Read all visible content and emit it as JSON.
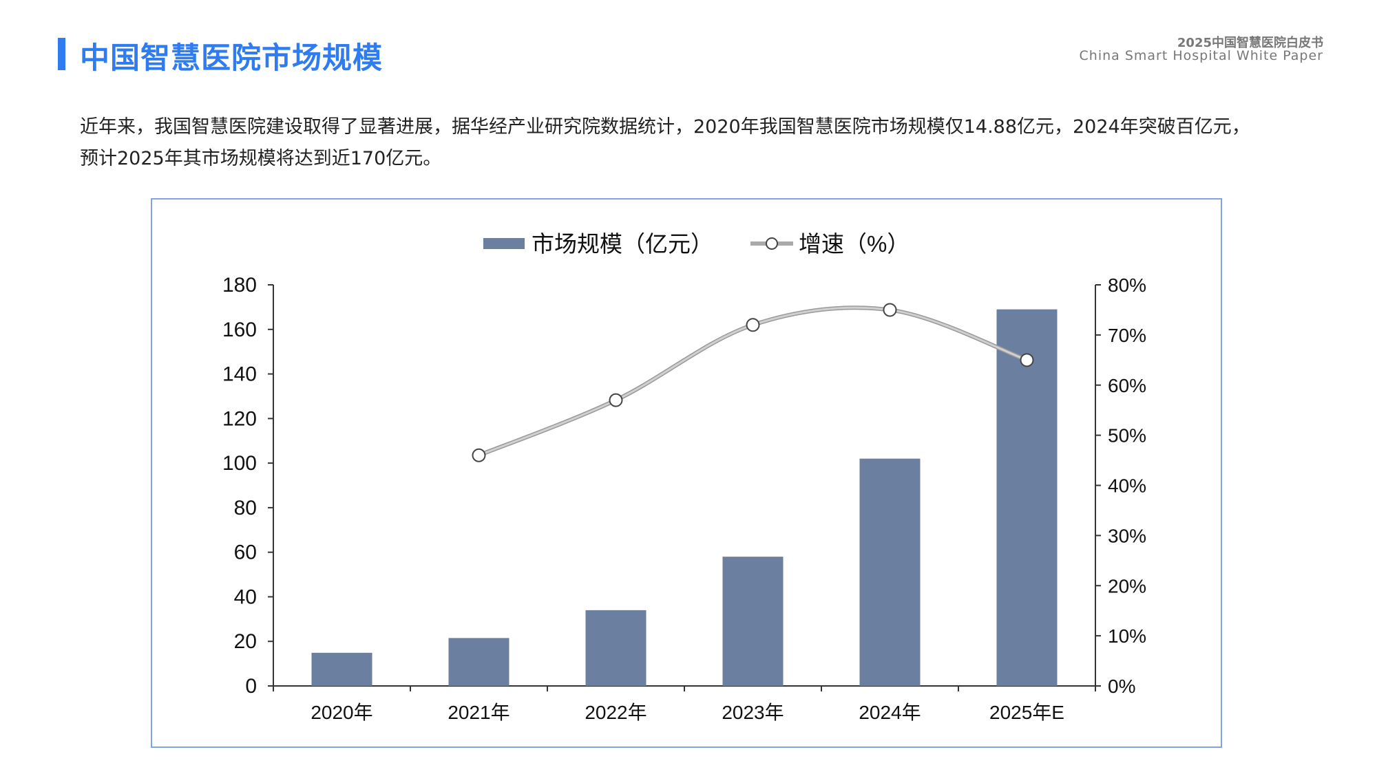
{
  "header": {
    "title": "中国智慧医院市场规模",
    "report_cn": "2025中国智慧医院白皮书",
    "report_en": "China Smart Hospital White Paper",
    "accent_color": "#2f7bf0"
  },
  "paragraph": "近年来，我国智慧医院建设取得了显著进展，据华经产业研究院数据统计，2020年我国智慧医院市场规模仅14.88亿元，2024年突破百亿元，预计2025年其市场规模将达到近170亿元。",
  "chart_data": {
    "type": "bar",
    "categories": [
      "2020年",
      "2021年",
      "2022年",
      "2023年",
      "2024年",
      "2025年E"
    ],
    "series": [
      {
        "name": "市场规模（亿元）",
        "type": "bar",
        "axis": "left",
        "color": "#6b7fa0",
        "values": [
          14.88,
          21.5,
          34,
          58,
          102,
          169
        ]
      },
      {
        "name": "增速（%）",
        "type": "line",
        "axis": "right",
        "color": "#b5b5b5",
        "values": [
          null,
          46,
          57,
          72,
          75,
          65
        ]
      }
    ],
    "y_left": {
      "ylim": [
        0,
        180
      ],
      "ticks": [
        "0",
        "20",
        "40",
        "60",
        "80",
        "100",
        "120",
        "140",
        "160",
        "180"
      ]
    },
    "y_right": {
      "ylim": [
        0,
        80
      ],
      "ticks": [
        "0%",
        "10%",
        "20%",
        "30%",
        "40%",
        "50%",
        "60%",
        "70%",
        "80%"
      ]
    },
    "legend": "top-center",
    "grid": false
  }
}
